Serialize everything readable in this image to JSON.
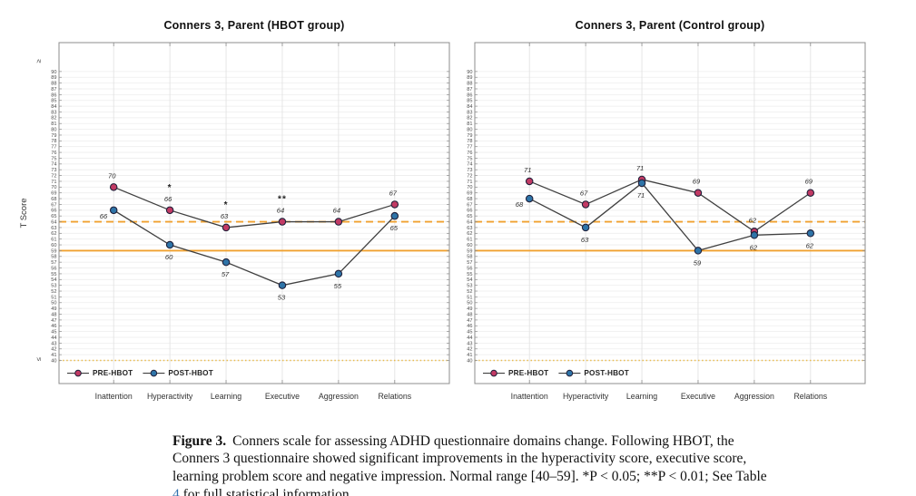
{
  "figure": {
    "caption_label": "Figure 3.",
    "caption_before_link": "Conners scale for assessing ADHD questionnaire domains change. Following HBOT, the Conners 3 questionnaire showed significant improvements in the hyperactivity score, executive score, learning problem score and negative impression. Normal range [40–59]. *P < 0.05; **P < 0.01; See Table ",
    "caption_link": "4",
    "caption_after_link": " for full statistical information."
  },
  "colors": {
    "pre_marker": "#c23a64",
    "post_marker": "#2e74a8",
    "series_line": "#404040",
    "marker_edge": "#20203a",
    "ref_orange": "#f0a12f",
    "ref_dotted_orange": "#e9bc4f",
    "gridline": "#ededed",
    "vertical_gridline": "#e3e3e3",
    "plot_border": "#8c8c8c"
  },
  "chart_data": [
    {
      "type": "line",
      "title": "Conners 3, Parent (HBOT group)",
      "ylabel": "T Score",
      "categories": [
        "Inattention",
        "Hyperactivity",
        "Learning",
        "Executive",
        "Aggression",
        "Relations"
      ],
      "series": [
        {
          "name": "PRE-HBOT",
          "color": "#c23a64",
          "values": [
            70,
            66,
            63,
            64,
            64,
            67
          ]
        },
        {
          "name": "POST-HBOT",
          "color": "#2e74a8",
          "values": [
            66,
            60,
            57,
            53,
            55,
            65
          ]
        }
      ],
      "significance": [
        "",
        "*",
        "*",
        "**",
        "",
        ""
      ],
      "ref_lines": [
        {
          "value": 64,
          "style": "dashed",
          "color": "#f0a12f"
        },
        {
          "value": 59,
          "style": "solid",
          "color": "#f0a12f"
        },
        {
          "value": 40,
          "style": "dotted",
          "color": "#e9bc4f"
        }
      ],
      "ylim": [
        36,
        95
      ],
      "yticks": [
        40,
        90
      ],
      "ytick_step": 1,
      "axis_cap_top": "≥",
      "axis_cap_bottom": "≤",
      "grid": true,
      "legend_position": "bottom-left-inside"
    },
    {
      "type": "line",
      "title": "Conners 3, Parent (Control group)",
      "ylabel": "",
      "categories": [
        "Inattention",
        "Hyperactivity",
        "Learning",
        "Executive",
        "Aggression",
        "Relations"
      ],
      "series": [
        {
          "name": "PRE-HBOT",
          "color": "#c23a64",
          "values": [
            71,
            67,
            71,
            69,
            62,
            69
          ]
        },
        {
          "name": "POST-HBOT",
          "color": "#2e74a8",
          "values": [
            68,
            63,
            71,
            59,
            62,
            62
          ]
        }
      ],
      "significance": [
        "",
        "",
        "",
        "",
        "",
        ""
      ],
      "ref_lines": [
        {
          "value": 64,
          "style": "dashed",
          "color": "#f0a12f"
        },
        {
          "value": 59,
          "style": "solid",
          "color": "#f0a12f"
        },
        {
          "value": 40,
          "style": "dotted",
          "color": "#e9bc4f"
        }
      ],
      "ylim": [
        36,
        95
      ],
      "yticks": [
        40,
        90
      ],
      "ytick_step": 1,
      "axis_cap_top": "≥",
      "axis_cap_bottom": "≤",
      "grid": true,
      "legend_position": "bottom-left-inside"
    }
  ]
}
